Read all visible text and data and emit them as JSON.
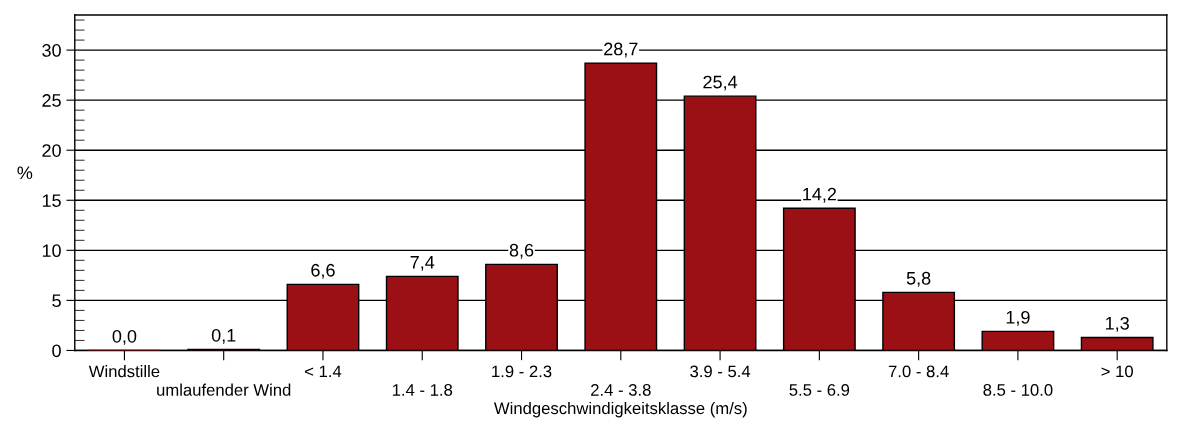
{
  "chart_data": {
    "type": "bar",
    "categories": [
      "Windstille",
      "umlaufender Wind",
      "< 1.4",
      "1.4 - 1.8",
      "1.9 - 2.3",
      "2.4 - 3.8",
      "3.9 - 5.4",
      "5.5 - 6.9",
      "7.0 - 8.4",
      "8.5 - 10.0",
      "> 10"
    ],
    "values": [
      0.0,
      0.1,
      6.6,
      7.4,
      8.6,
      28.7,
      25.4,
      14.2,
      5.8,
      1.9,
      1.3
    ],
    "value_labels": [
      "0,0",
      "0,1",
      "6,6",
      "7,4",
      "8,6",
      "28,7",
      "25,4",
      "14,2",
      "5,8",
      "1,9",
      "1,3"
    ],
    "color": "#9b1015",
    "xlabel": "Windgeschwindigkeitsklasse (m/s)",
    "ylabel": "%",
    "ylim": [
      0,
      33.5
    ],
    "yticks": [
      0,
      5,
      10,
      15,
      20,
      25,
      30,
      {
        "value": 1,
        "label": null
      },
      {
        "value": 2,
        "label": null
      },
      {
        "value": 3,
        "label": null
      },
      {
        "value": 4,
        "label": null
      },
      {
        "value": 6,
        "label": null
      },
      {
        "value": 7,
        "label": null
      },
      {
        "value": 8,
        "label": null
      },
      {
        "value": 9,
        "label": null
      },
      {
        "value": 11,
        "label": null
      },
      {
        "value": 12,
        "label": null
      },
      {
        "value": 13,
        "label": null
      },
      {
        "value": 14,
        "label": null
      },
      {
        "value": 16,
        "label": null
      },
      {
        "value": 17,
        "label": null
      },
      {
        "value": 18,
        "label": null
      },
      {
        "value": 19,
        "label": null
      },
      {
        "value": 21,
        "label": null
      },
      {
        "value": 22,
        "label": null
      },
      {
        "value": 23,
        "label": null
      },
      {
        "value": 24,
        "label": null
      },
      {
        "value": 26,
        "label": null
      },
      {
        "value": 27,
        "label": null
      },
      {
        "value": 28,
        "label": null
      },
      {
        "value": 29,
        "label": null
      },
      {
        "value": 31,
        "label": null
      },
      {
        "value": 32,
        "label": null
      },
      {
        "value": 33,
        "label": null
      }
    ],
    "grid": "y"
  }
}
